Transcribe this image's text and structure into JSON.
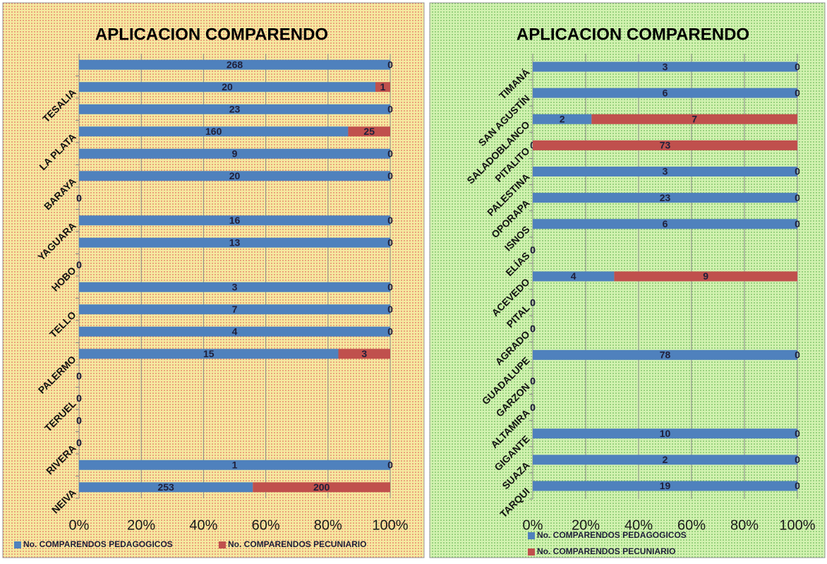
{
  "chart_data": [
    {
      "type": "bar",
      "orientation": "horizontal",
      "stacking": "percent",
      "grid": true,
      "title": "APLICACION COMPARENDO",
      "categories": [
        "NEIVA",
        null,
        "RIVERA",
        null,
        "TERUEL",
        null,
        "PALERMO",
        null,
        "TELLO",
        null,
        "HOBO",
        null,
        "YAGUARA",
        null,
        "BARAYA",
        null,
        "LA PLATA",
        null,
        "TESALIA",
        null
      ],
      "series": [
        {
          "name": "No. COMPARENDOS PEDAGOGICOS",
          "color": "#4f81bd",
          "values": [
            253,
            1,
            0,
            0,
            0,
            0,
            15,
            4,
            7,
            3,
            0,
            13,
            16,
            0,
            20,
            9,
            160,
            23,
            20,
            268
          ]
        },
        {
          "name": "No. COMPARENDOS PECUNIARIO",
          "color": "#c0504d",
          "values": [
            200,
            0,
            0,
            0,
            0,
            0,
            3,
            0,
            0,
            0,
            0,
            0,
            0,
            0,
            0,
            0,
            25,
            0,
            1,
            0
          ]
        }
      ],
      "xlim": [
        0,
        100
      ],
      "xticks": [
        {
          "value": 0,
          "label": "0%"
        },
        {
          "value": 20,
          "label": "20%"
        },
        {
          "value": 40,
          "label": "40%"
        },
        {
          "value": 60,
          "label": "60%"
        },
        {
          "value": 80,
          "label": "80%"
        },
        {
          "value": 100,
          "label": "100%"
        }
      ]
    },
    {
      "type": "bar",
      "orientation": "horizontal",
      "stacking": "percent",
      "grid": true,
      "title": "APLICACION COMPARENDO",
      "categories": [
        "TARQUI",
        "SUAZA",
        "GIGANTE",
        "ALTAMIRA",
        "GARZON",
        "GUADALUPE",
        "AGRADO",
        "PITAL",
        "ACEVEDO",
        "ELÍAS",
        "ISNOS",
        "OPORAPA",
        "PALESTINA",
        "PITALITO",
        "SALADOBLANCO",
        "SAN AGUSTÍN",
        "TIMANÁ"
      ],
      "series": [
        {
          "name": "No. COMPARENDOS PEDAGOGICOS",
          "color": "#4f81bd",
          "values": [
            19,
            2,
            10,
            0,
            0,
            78,
            0,
            0,
            4,
            0,
            6,
            23,
            3,
            0,
            2,
            6,
            3
          ]
        },
        {
          "name": "No. COMPARENDOS PECUNIARIO",
          "color": "#c0504d",
          "values": [
            0,
            0,
            0,
            0,
            0,
            0,
            0,
            0,
            9,
            0,
            0,
            0,
            0,
            73,
            7,
            0,
            0
          ]
        }
      ],
      "xlim": [
        0,
        100
      ],
      "xticks": [
        {
          "value": 0,
          "label": "0%"
        },
        {
          "value": 20,
          "label": "20%"
        },
        {
          "value": 40,
          "label": "40%"
        },
        {
          "value": 60,
          "label": "60%"
        },
        {
          "value": 80,
          "label": "80%"
        },
        {
          "value": 100,
          "label": "100%"
        }
      ]
    }
  ]
}
